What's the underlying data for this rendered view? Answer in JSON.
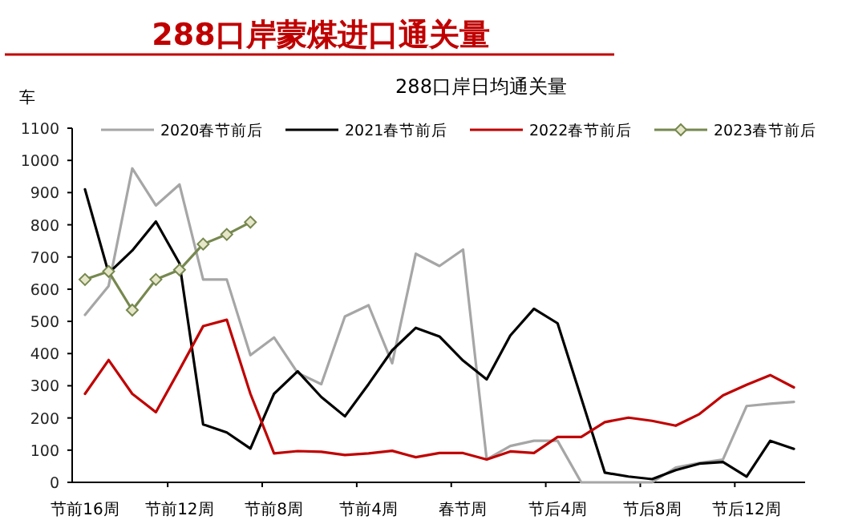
{
  "chart_data": {
    "type": "line",
    "title": "288口岸蒙煤进口通关量",
    "subtitle": "288口岸日均通关量",
    "ylabel": "车",
    "categories": [
      "节前16周",
      null,
      null,
      null,
      "节前12周",
      null,
      null,
      null,
      "节前8周",
      null,
      null,
      null,
      "节前4周",
      null,
      null,
      null,
      "春节周",
      null,
      null,
      null,
      "节后4周",
      null,
      null,
      null,
      "节后8周",
      null,
      null,
      null,
      "节后12周",
      null,
      null
    ],
    "ylim": [
      0,
      1100
    ],
    "yticks": [
      0,
      100,
      200,
      300,
      400,
      500,
      600,
      700,
      800,
      900,
      1000,
      1100
    ],
    "grid": false,
    "legend": "top",
    "line_style": "solid",
    "series": [
      {
        "name": "2020春节前后",
        "color": "#a6a6a6",
        "marker": "none",
        "values": [
          520,
          610,
          975,
          860,
          925,
          630,
          630,
          395,
          450,
          340,
          305,
          515,
          550,
          370,
          710,
          672,
          723,
          71,
          113,
          129,
          129,
          0,
          0,
          0,
          0,
          46,
          60,
          71,
          237,
          244,
          250
        ]
      },
      {
        "name": "2021春节前后",
        "color": "#000000",
        "marker": "none",
        "values": [
          910,
          650,
          720,
          810,
          680,
          180,
          155,
          105,
          275,
          345,
          265,
          205,
          305,
          410,
          480,
          453,
          378,
          320,
          456,
          539,
          494,
          262,
          30,
          18,
          10,
          38,
          58,
          63,
          18,
          129,
          104
        ]
      },
      {
        "name": "2022春节前后",
        "color": "#c00000",
        "marker": "none",
        "values": [
          275,
          380,
          275,
          218,
          350,
          485,
          505,
          275,
          90,
          97,
          95,
          85,
          90,
          98,
          78,
          91,
          91,
          71,
          96,
          91,
          141,
          141,
          187,
          201,
          191,
          176,
          212,
          270,
          303,
          333,
          295
        ]
      },
      {
        "name": "2023春节前后",
        "color": "#76884f",
        "marker": "diamond",
        "values": [
          630,
          655,
          535,
          630,
          660,
          740,
          770,
          808,
          null,
          null,
          null,
          null,
          null,
          null,
          null,
          null,
          null,
          null,
          null,
          null,
          null,
          null,
          null,
          null,
          null,
          null,
          null,
          null,
          null,
          null,
          null
        ]
      }
    ]
  }
}
